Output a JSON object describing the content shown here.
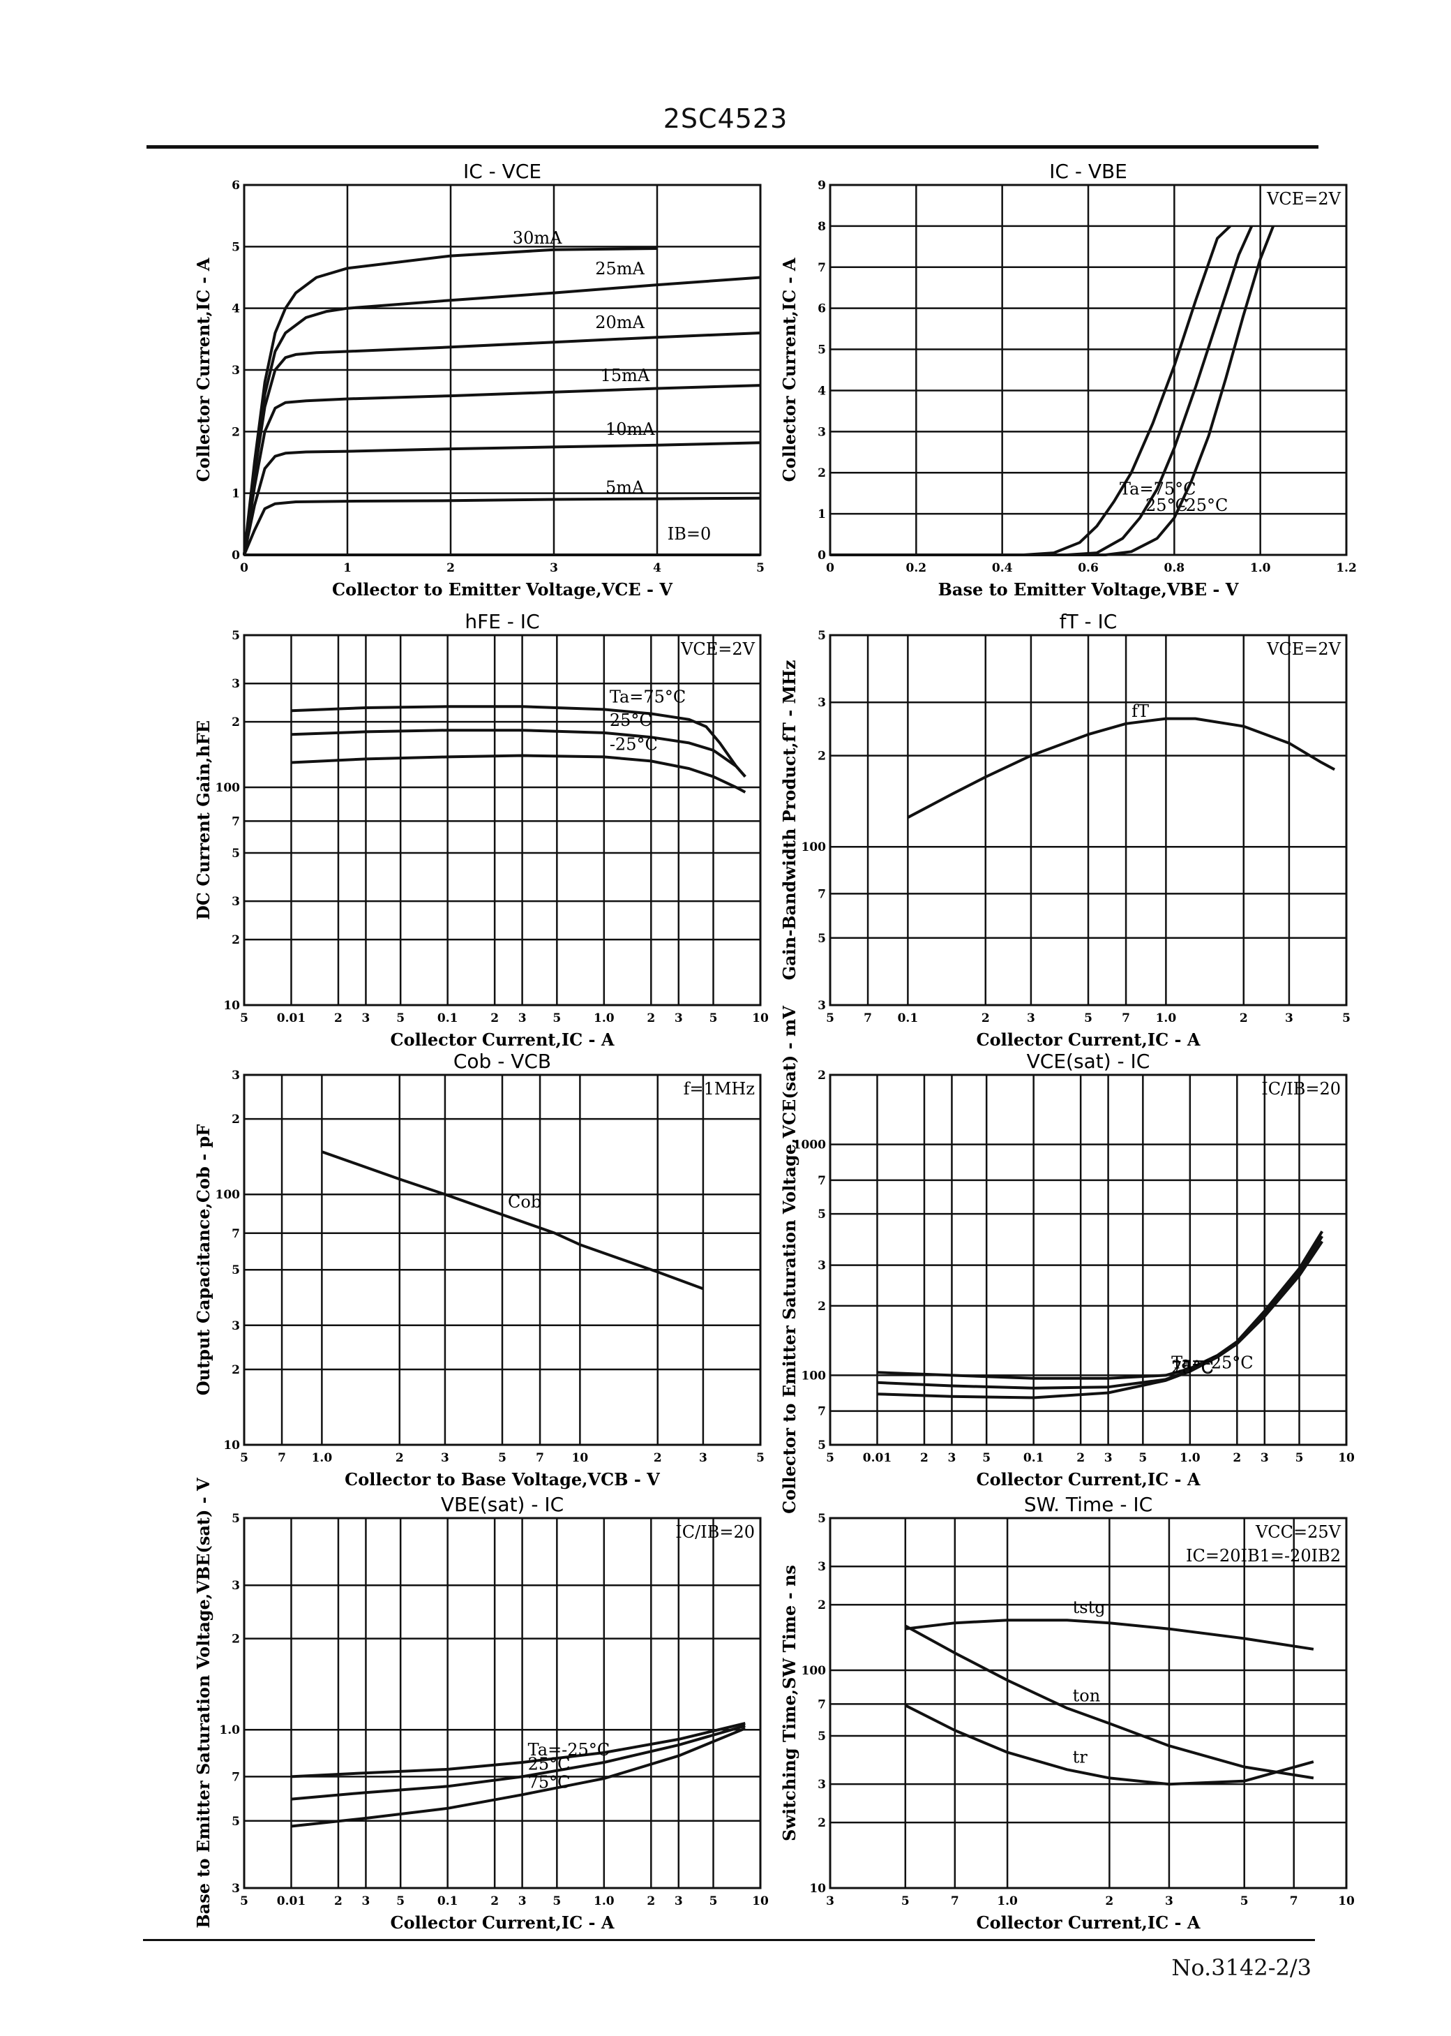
{
  "header": {
    "part_number": "2SC4523"
  },
  "footer": {
    "doc_number": "No.3142-2/3"
  },
  "chart_data": [
    {
      "id": "ic-vce",
      "type": "line",
      "title": "IC - VCE",
      "xlabel": "Collector to Emitter Voltage,VCE - V",
      "ylabel": "Collector Current,IC - A",
      "xscale": "linear",
      "yscale": "linear",
      "xlim": [
        0,
        5
      ],
      "ylim": [
        0,
        6
      ],
      "xticks": [
        0,
        1,
        2,
        3,
        4,
        5
      ],
      "yticks": [
        0,
        1,
        2,
        3,
        4,
        5,
        6
      ],
      "grid": true,
      "annotations": [
        {
          "text": "IB=0",
          "x": 4.1,
          "y": 0.25
        }
      ],
      "series": [
        {
          "name": "30mA",
          "label_at": [
            2.6,
            5.05
          ],
          "x": [
            0,
            0.1,
            0.2,
            0.3,
            0.4,
            0.5,
            0.7,
            1.0,
            2.0,
            3.0,
            4.0
          ],
          "y": [
            0,
            1.5,
            2.8,
            3.6,
            4.0,
            4.25,
            4.5,
            4.65,
            4.85,
            4.95,
            4.97
          ]
        },
        {
          "name": "25mA",
          "label_at": [
            3.4,
            4.55
          ],
          "x": [
            0,
            0.1,
            0.2,
            0.3,
            0.4,
            0.6,
            0.8,
            1.0,
            2.0,
            3.0,
            4.0,
            5.0
          ],
          "y": [
            0,
            1.4,
            2.6,
            3.3,
            3.6,
            3.85,
            3.95,
            4.0,
            4.13,
            4.25,
            4.38,
            4.5
          ]
        },
        {
          "name": "20mA",
          "label_at": [
            3.4,
            3.68
          ],
          "x": [
            0,
            0.1,
            0.2,
            0.3,
            0.4,
            0.5,
            0.7,
            1.0,
            2.0,
            3.0,
            4.0,
            5.0
          ],
          "y": [
            0,
            1.3,
            2.4,
            3.0,
            3.2,
            3.25,
            3.28,
            3.3,
            3.37,
            3.45,
            3.53,
            3.6
          ]
        },
        {
          "name": "15mA",
          "label_at": [
            3.45,
            2.82
          ],
          "x": [
            0,
            0.1,
            0.2,
            0.3,
            0.4,
            0.6,
            1.0,
            2.0,
            3.0,
            4.0,
            5.0
          ],
          "y": [
            0,
            1.1,
            2.0,
            2.38,
            2.47,
            2.5,
            2.53,
            2.58,
            2.64,
            2.7,
            2.75
          ]
        },
        {
          "name": "10mA",
          "label_at": [
            3.5,
            1.95
          ],
          "x": [
            0,
            0.1,
            0.2,
            0.3,
            0.4,
            0.6,
            1.0,
            2.0,
            3.0,
            4.0,
            5.0
          ],
          "y": [
            0,
            0.8,
            1.4,
            1.6,
            1.65,
            1.67,
            1.68,
            1.72,
            1.75,
            1.78,
            1.82
          ]
        },
        {
          "name": "5mA",
          "label_at": [
            3.5,
            1.0
          ],
          "x": [
            0,
            0.1,
            0.2,
            0.3,
            0.5,
            1.0,
            2.0,
            3.0,
            4.0,
            5.0
          ],
          "y": [
            0,
            0.4,
            0.75,
            0.83,
            0.86,
            0.87,
            0.88,
            0.9,
            0.91,
            0.92
          ]
        },
        {
          "name": "IB=0",
          "x": [
            0,
            5
          ],
          "y": [
            0,
            0
          ]
        }
      ]
    },
    {
      "id": "ic-vbe",
      "type": "line",
      "title": "IC - VBE",
      "xlabel": "Base to Emitter Voltage,VBE - V",
      "ylabel": "Collector Current,IC - A",
      "xscale": "linear",
      "yscale": "linear",
      "xlim": [
        0,
        1.2
      ],
      "ylim": [
        0,
        9
      ],
      "xticks": [
        0,
        0.2,
        0.4,
        0.6,
        0.8,
        1.0,
        1.2
      ],
      "xticklabels": [
        "0",
        "0.2",
        "0.4",
        "0.6",
        "0.8",
        "1.0",
        "1.2"
      ],
      "yticks": [
        0,
        1,
        2,
        3,
        4,
        5,
        6,
        7,
        8,
        9
      ],
      "grid": true,
      "annotations": [
        {
          "text": "VCE=2V",
          "corner": "top-right"
        }
      ],
      "series": [
        {
          "name": "Ta=75°C",
          "x": [
            0,
            0.45,
            0.52,
            0.58,
            0.62,
            0.66,
            0.7,
            0.75,
            0.8,
            0.85,
            0.9,
            0.93
          ],
          "y": [
            0,
            0,
            0.05,
            0.3,
            0.7,
            1.3,
            2.0,
            3.2,
            4.6,
            6.2,
            7.7,
            8.0
          ]
        },
        {
          "name": "25°C",
          "x": [
            0,
            0.55,
            0.62,
            0.68,
            0.72,
            0.76,
            0.8,
            0.85,
            0.9,
            0.95,
            0.98
          ],
          "y": [
            0,
            0,
            0.05,
            0.4,
            0.9,
            1.6,
            2.6,
            4.1,
            5.7,
            7.3,
            8.0
          ]
        },
        {
          "name": "-25°C",
          "x": [
            0,
            0.64,
            0.7,
            0.76,
            0.8,
            0.84,
            0.88,
            0.92,
            0.96,
            1.0,
            1.03
          ],
          "y": [
            0,
            0,
            0.08,
            0.4,
            0.9,
            1.8,
            2.9,
            4.3,
            5.8,
            7.2,
            8.0
          ]
        }
      ]
    },
    {
      "id": "hfe-ic",
      "type": "line",
      "title": "hFE - IC",
      "xlabel": "Collector Current,IC - A",
      "ylabel": "DC Current Gain,hFE",
      "xscale": "log",
      "yscale": "log",
      "xlim": [
        0.005,
        10
      ],
      "ylim": [
        10,
        500
      ],
      "xticks": [
        0.005,
        0.01,
        0.02,
        0.03,
        0.05,
        0.1,
        0.2,
        0.3,
        0.5,
        1.0,
        2,
        3,
        5,
        10
      ],
      "xticklabels": [
        "5",
        "0.01",
        "2",
        "3",
        "5",
        "0.1",
        "2",
        "3",
        "5",
        "1.0",
        "2",
        "3",
        "5",
        "10"
      ],
      "yticks": [
        10,
        20,
        30,
        50,
        70,
        100,
        200,
        300,
        500
      ],
      "yticklabels": [
        "10",
        "2",
        "3",
        "5",
        "7",
        "100",
        "2",
        "3",
        "5"
      ],
      "grid": true,
      "annotations": [
        {
          "text": "VCE=2V",
          "corner": "top-right"
        }
      ],
      "series": [
        {
          "name": "Ta=75°C",
          "x": [
            0.01,
            0.03,
            0.1,
            0.3,
            1.0,
            2.0,
            3.5,
            4.5,
            5.5,
            7.0,
            8.0
          ],
          "y": [
            225,
            232,
            235,
            235,
            228,
            218,
            205,
            190,
            160,
            125,
            112
          ]
        },
        {
          "name": "25°C",
          "x": [
            0.01,
            0.03,
            0.1,
            0.3,
            1.0,
            2.0,
            3.5,
            5.0,
            7.0,
            8.0
          ],
          "y": [
            175,
            180,
            183,
            183,
            178,
            170,
            160,
            148,
            125,
            112
          ]
        },
        {
          "name": "-25°C",
          "x": [
            0.01,
            0.03,
            0.1,
            0.3,
            1.0,
            2.0,
            3.5,
            5.0,
            7.0,
            8.0
          ],
          "y": [
            130,
            135,
            138,
            140,
            138,
            132,
            122,
            112,
            100,
            95
          ]
        }
      ]
    },
    {
      "id": "ft-ic",
      "type": "line",
      "title": "fT - IC",
      "xlabel": "Collector Current,IC - A",
      "ylabel": "Gain-Bandwidth Product,fT - MHz",
      "xscale": "log",
      "yscale": "log",
      "xlim": [
        0.05,
        5
      ],
      "ylim": [
        30,
        500
      ],
      "xticks": [
        0.05,
        0.07,
        0.1,
        0.2,
        0.3,
        0.5,
        0.7,
        1.0,
        2,
        3,
        5
      ],
      "xticklabels": [
        "5",
        "7",
        "0.1",
        "2",
        "3",
        "5",
        "7",
        "1.0",
        "2",
        "3",
        "5"
      ],
      "yticks": [
        30,
        50,
        70,
        100,
        200,
        300,
        500
      ],
      "yticklabels": [
        "3",
        "5",
        "7",
        "100",
        "2",
        "3",
        "5"
      ],
      "grid": true,
      "annotations": [
        {
          "text": "VCE=2V",
          "corner": "top-right"
        }
      ],
      "series": [
        {
          "name": "fT",
          "x": [
            0.1,
            0.15,
            0.2,
            0.3,
            0.5,
            0.7,
            1.0,
            1.3,
            2.0,
            3.0,
            4.0,
            4.5
          ],
          "y": [
            125,
            150,
            170,
            200,
            235,
            255,
            265,
            265,
            250,
            220,
            190,
            180
          ]
        }
      ]
    },
    {
      "id": "cob-vcb",
      "type": "line",
      "title": "Cob - VCB",
      "xlabel": "Collector to Base Voltage,VCB - V",
      "ylabel": "Output Capacitance,Cob - pF",
      "xscale": "log",
      "yscale": "log",
      "xlim": [
        0.5,
        50
      ],
      "ylim": [
        10,
        300
      ],
      "xticks": [
        0.5,
        0.7,
        1.0,
        2,
        3,
        5,
        7,
        10,
        20,
        30,
        50
      ],
      "xticklabels": [
        "5",
        "7",
        "1.0",
        "2",
        "3",
        "5",
        "7",
        "10",
        "2",
        "3",
        "5"
      ],
      "yticks": [
        10,
        20,
        30,
        50,
        70,
        100,
        200,
        300
      ],
      "yticklabels": [
        "10",
        "2",
        "3",
        "5",
        "7",
        "100",
        "2",
        "3"
      ],
      "grid": true,
      "annotations": [
        {
          "text": "f=1MHz",
          "corner": "top-right"
        }
      ],
      "series": [
        {
          "name": "Cob",
          "x": [
            1.0,
            2.0,
            3.0,
            5.0,
            8.0,
            10,
            20,
            30
          ],
          "y": [
            148,
            115,
            100,
            83,
            70,
            63,
            49,
            42
          ]
        }
      ]
    },
    {
      "id": "vcesat-ic",
      "type": "line",
      "title": "VCE(sat) - IC",
      "xlabel": "Collector Current,IC - A",
      "ylabel": "Collector to Emitter Saturation Voltage,VCE(sat) - mV",
      "xscale": "log",
      "yscale": "log",
      "xlim": [
        0.005,
        10
      ],
      "ylim": [
        50,
        2000
      ],
      "xticks": [
        0.005,
        0.01,
        0.02,
        0.03,
        0.05,
        0.1,
        0.2,
        0.3,
        0.5,
        1.0,
        2,
        3,
        5,
        10
      ],
      "xticklabels": [
        "5",
        "0.01",
        "2",
        "3",
        "5",
        "0.1",
        "2",
        "3",
        "5",
        "1.0",
        "2",
        "3",
        "5",
        "10"
      ],
      "yticks": [
        50,
        70,
        100,
        200,
        300,
        500,
        700,
        1000,
        2000
      ],
      "yticklabels": [
        "5",
        "7",
        "100",
        "2",
        "3",
        "5",
        "7",
        "1000",
        "2"
      ],
      "grid": true,
      "annotations": [
        {
          "text": "IC/IB=20",
          "corner": "top-right"
        }
      ],
      "series": [
        {
          "name": "Ta=-25°C",
          "x": [
            0.01,
            0.03,
            0.1,
            0.3,
            0.7,
            1.0,
            1.5,
            2.0,
            3.0,
            5.0,
            7.0
          ],
          "y": [
            103,
            100,
            97,
            97,
            100,
            107,
            122,
            140,
            190,
            290,
            420
          ]
        },
        {
          "name": "25°C",
          "x": [
            0.01,
            0.03,
            0.1,
            0.3,
            0.7,
            1.0,
            1.5,
            2.0,
            3.0,
            5.0,
            7.0
          ],
          "y": [
            93,
            90,
            88,
            89,
            96,
            105,
            120,
            138,
            185,
            280,
            400
          ]
        },
        {
          "name": "75°C",
          "x": [
            0.01,
            0.03,
            0.1,
            0.3,
            0.7,
            1.0,
            1.5,
            2.0,
            3.0,
            5.0,
            7.0
          ],
          "y": [
            83,
            81,
            80,
            84,
            95,
            104,
            120,
            137,
            180,
            270,
            380
          ]
        }
      ]
    },
    {
      "id": "vbesat-ic",
      "type": "line",
      "title": "VBE(sat) - IC",
      "xlabel": "Collector Current,IC - A",
      "ylabel": "Base to Emitter Saturation Voltage,VBE(sat) - V",
      "xscale": "log",
      "yscale": "log",
      "xlim": [
        0.005,
        10
      ],
      "ylim": [
        0.3,
        5
      ],
      "xticks": [
        0.005,
        0.01,
        0.02,
        0.03,
        0.05,
        0.1,
        0.2,
        0.3,
        0.5,
        1.0,
        2,
        3,
        5,
        10
      ],
      "xticklabels": [
        "5",
        "0.01",
        "2",
        "3",
        "5",
        "0.1",
        "2",
        "3",
        "5",
        "1.0",
        "2",
        "3",
        "5",
        "10"
      ],
      "yticks": [
        0.3,
        0.5,
        0.7,
        1.0,
        2,
        3,
        5
      ],
      "yticklabels": [
        "3",
        "5",
        "7",
        "1.0",
        "2",
        "3",
        "5"
      ],
      "grid": true,
      "annotations": [
        {
          "text": "IC/IB=20",
          "corner": "top-right"
        }
      ],
      "series": [
        {
          "name": "Ta=-25°C",
          "x": [
            0.01,
            0.03,
            0.1,
            0.3,
            1.0,
            3.0,
            8.0
          ],
          "y": [
            0.7,
            0.72,
            0.74,
            0.78,
            0.84,
            0.93,
            1.05
          ]
        },
        {
          "name": "25°C",
          "x": [
            0.01,
            0.03,
            0.1,
            0.3,
            1.0,
            3.0,
            8.0
          ],
          "y": [
            0.59,
            0.62,
            0.65,
            0.7,
            0.78,
            0.89,
            1.03
          ]
        },
        {
          "name": "75°C",
          "x": [
            0.01,
            0.03,
            0.1,
            0.3,
            1.0,
            3.0,
            8.0
          ],
          "y": [
            0.48,
            0.51,
            0.55,
            0.61,
            0.69,
            0.82,
            1.01
          ]
        }
      ]
    },
    {
      "id": "swtime-ic",
      "type": "line",
      "title": "SW. Time - IC",
      "xlabel": "Collector Current,IC - A",
      "ylabel": "Switching Time,SW Time - ns",
      "xscale": "log",
      "yscale": "log",
      "xlim": [
        0.3,
        10
      ],
      "ylim": [
        10,
        500
      ],
      "xticks": [
        0.3,
        0.5,
        0.7,
        1.0,
        2,
        3,
        5,
        7,
        10
      ],
      "xticklabels": [
        "3",
        "5",
        "7",
        "1.0",
        "2",
        "3",
        "5",
        "7",
        "10"
      ],
      "yticks": [
        10,
        20,
        30,
        50,
        70,
        100,
        200,
        300,
        500
      ],
      "yticklabels": [
        "10",
        "2",
        "3",
        "5",
        "7",
        "100",
        "2",
        "3",
        "5"
      ],
      "grid": true,
      "annotations": [
        {
          "text": "VCC=25V",
          "corner": "top-right"
        },
        {
          "text": "IC=20IB1=-20IB2",
          "corner": "top-right-2"
        }
      ],
      "series": [
        {
          "name": "tstg",
          "x": [
            0.5,
            0.7,
            1.0,
            1.5,
            2.0,
            3.0,
            5.0,
            8.0
          ],
          "y": [
            155,
            165,
            170,
            170,
            165,
            155,
            140,
            125
          ]
        },
        {
          "name": "ton",
          "x": [
            0.5,
            0.7,
            1.0,
            1.5,
            2.0,
            3.0,
            5.0,
            8.0
          ],
          "y": [
            160,
            120,
            90,
            67,
            57,
            45,
            36,
            32
          ]
        },
        {
          "name": "tr",
          "x": [
            0.5,
            0.7,
            1.0,
            1.5,
            2.0,
            3.0,
            5.0,
            8.0
          ],
          "y": [
            69,
            53,
            42,
            35,
            32,
            30,
            31,
            38
          ]
        }
      ]
    }
  ]
}
